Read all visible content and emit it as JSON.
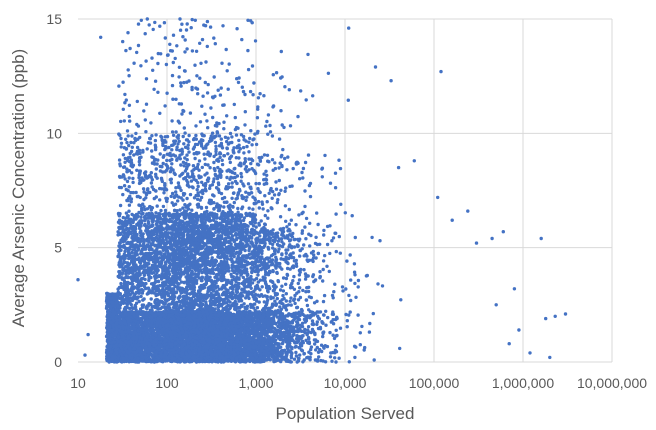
{
  "chart_data": {
    "type": "scatter",
    "title": "",
    "xlabel": "Population Served",
    "ylabel": "Average Arsenic Concentration (ppb)",
    "x_scale": "log",
    "xlim": [
      10,
      10000000
    ],
    "ylim": [
      0,
      15
    ],
    "x_ticks": [
      10,
      100,
      1000,
      10000,
      100000,
      1000000,
      10000000
    ],
    "x_tick_labels": [
      "10",
      "100",
      "1,000",
      "10,000",
      "100,000",
      "1,000,000",
      "10,000,000"
    ],
    "y_ticks": [
      0,
      5,
      10,
      15
    ],
    "y_tick_labels": [
      "0",
      "5",
      "10",
      "15"
    ],
    "grid": true,
    "legend": "none",
    "marker_color": "#4472C4",
    "outlier_points": [
      {
        "x": 10,
        "y": 3.6
      },
      {
        "x": 12,
        "y": 0.3
      },
      {
        "x": 13,
        "y": 1.2
      },
      {
        "x": 18,
        "y": 14.2
      },
      {
        "x": 60,
        "y": 15.0
      },
      {
        "x": 140,
        "y": 15.0
      },
      {
        "x": 11000,
        "y": 14.6
      },
      {
        "x": 22000,
        "y": 12.9
      },
      {
        "x": 33000,
        "y": 12.3
      },
      {
        "x": 120000,
        "y": 12.7
      },
      {
        "x": 40000,
        "y": 8.5
      },
      {
        "x": 60000,
        "y": 8.8
      },
      {
        "x": 110000,
        "y": 7.2
      },
      {
        "x": 160000,
        "y": 6.2
      },
      {
        "x": 240000,
        "y": 6.6
      },
      {
        "x": 300000,
        "y": 5.2
      },
      {
        "x": 450000,
        "y": 5.4
      },
      {
        "x": 600000,
        "y": 5.7
      },
      {
        "x": 1600000,
        "y": 5.4
      },
      {
        "x": 1800000,
        "y": 1.9
      },
      {
        "x": 2300000,
        "y": 2.0
      },
      {
        "x": 3000000,
        "y": 2.1
      },
      {
        "x": 1200000,
        "y": 0.4
      },
      {
        "x": 2000000,
        "y": 0.2
      },
      {
        "x": 800000,
        "y": 3.2
      },
      {
        "x": 500000,
        "y": 2.5
      },
      {
        "x": 900000,
        "y": 1.4
      },
      {
        "x": 700000,
        "y": 0.8
      }
    ],
    "bulk": {
      "count": 11000,
      "x_min": 20,
      "x_max": 700000,
      "note_x_mode": 150,
      "y_max": 15
    }
  }
}
